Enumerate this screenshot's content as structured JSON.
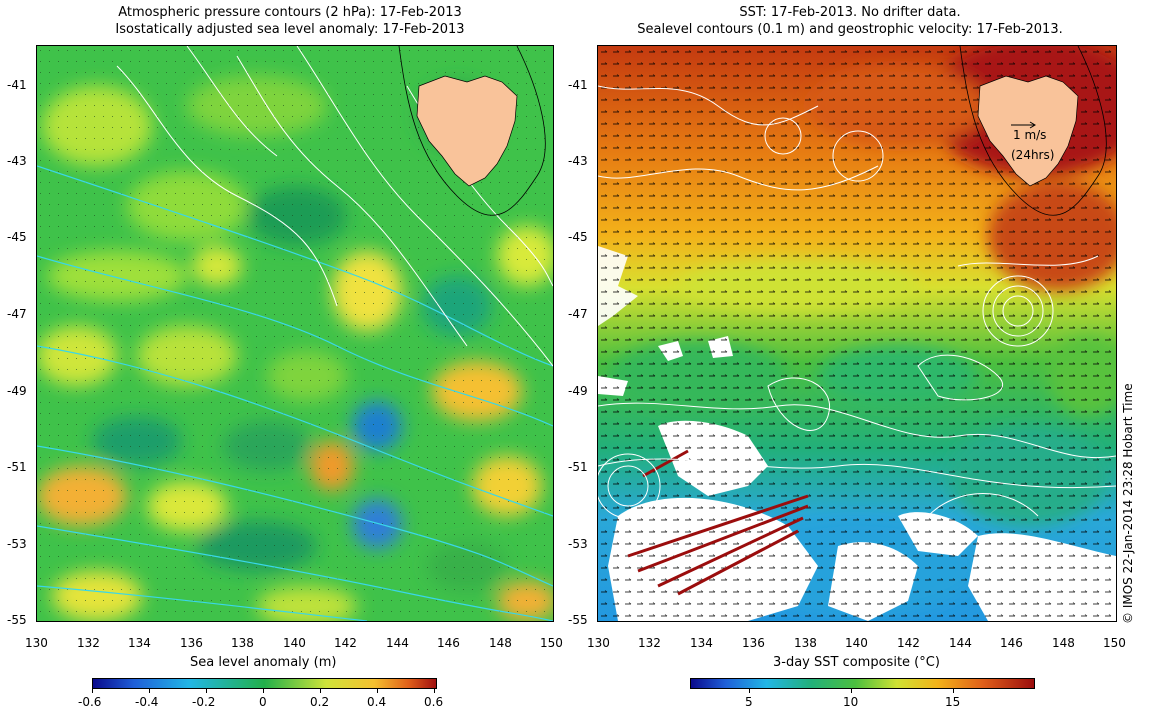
{
  "left_panel": {
    "title_line1": "Atmospheric pressure contours (2 hPa): 17-Feb-2013",
    "title_line2": "Isostatically adjusted sea level anomaly: 17-Feb-2013",
    "colorbar_label": "Sea level anomaly (m)",
    "colorbar_ticks": [
      "-0.6",
      "-0.4",
      "-0.2",
      "0",
      "0.2",
      "0.4",
      "0.6"
    ]
  },
  "right_panel": {
    "title_line1": "SST: 17-Feb-2013. No drifter data.",
    "title_line2": "Sealevel contours (0.1 m) and geostrophic velocity: 17-Feb-2013.",
    "colorbar_label": "3-day SST composite (°C)",
    "colorbar_ticks": [
      "5",
      "10",
      "15"
    ],
    "velocity_scale_line1": "1 m/s",
    "velocity_scale_line2": "(24hrs)"
  },
  "lat_labels": [
    "-41",
    "-43",
    "-45",
    "-47",
    "-49",
    "-51",
    "-53",
    "-55"
  ],
  "lon_labels": [
    "130",
    "132",
    "134",
    "136",
    "138",
    "140",
    "142",
    "144",
    "146",
    "148",
    "150"
  ],
  "credit": "© IMOS 22-Jan-2014 23:28 Hobart Time",
  "colors": {
    "land": "#f9c39a",
    "sla_low": "#0a0a8c",
    "sla_mid": "#22b04a",
    "sla_high": "#a01010",
    "sst_cold": "#0a0a8c",
    "sst_warm": "#9b0d0d",
    "contour_white": "#ffffff",
    "contour_cyan": "#3ad7e8"
  }
}
